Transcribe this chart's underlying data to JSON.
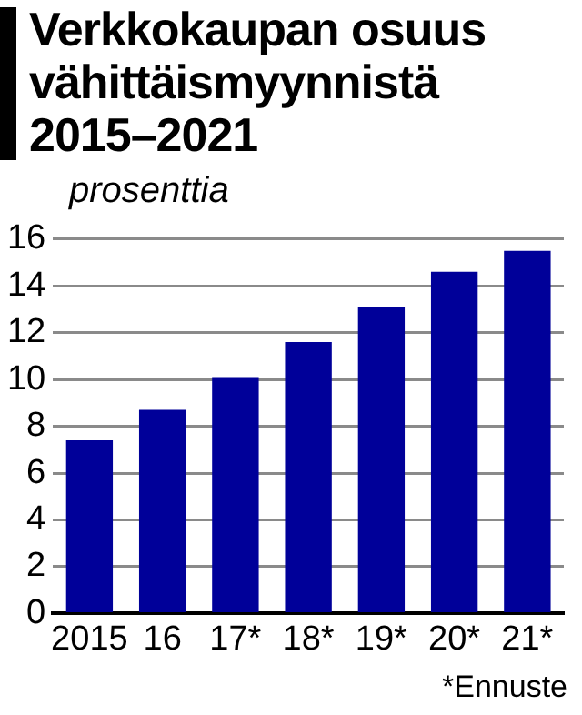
{
  "chart_data": {
    "type": "bar",
    "title": "Verkkokaupan osuus vähittäismyynnistä 2015–2021",
    "ylabel": "prosenttia",
    "categories": [
      "2015",
      "16",
      "17*",
      "18*",
      "19*",
      "20*",
      "21*"
    ],
    "values": [
      7.4,
      8.7,
      10.1,
      11.6,
      13.1,
      14.6,
      15.5
    ],
    "color": "#000099",
    "ylim": [
      0,
      16
    ],
    "yticks": [
      0,
      2,
      4,
      6,
      8,
      10,
      12,
      14,
      16
    ],
    "grid": "y",
    "legend": false,
    "annotations": [
      "*Ennuste"
    ]
  }
}
